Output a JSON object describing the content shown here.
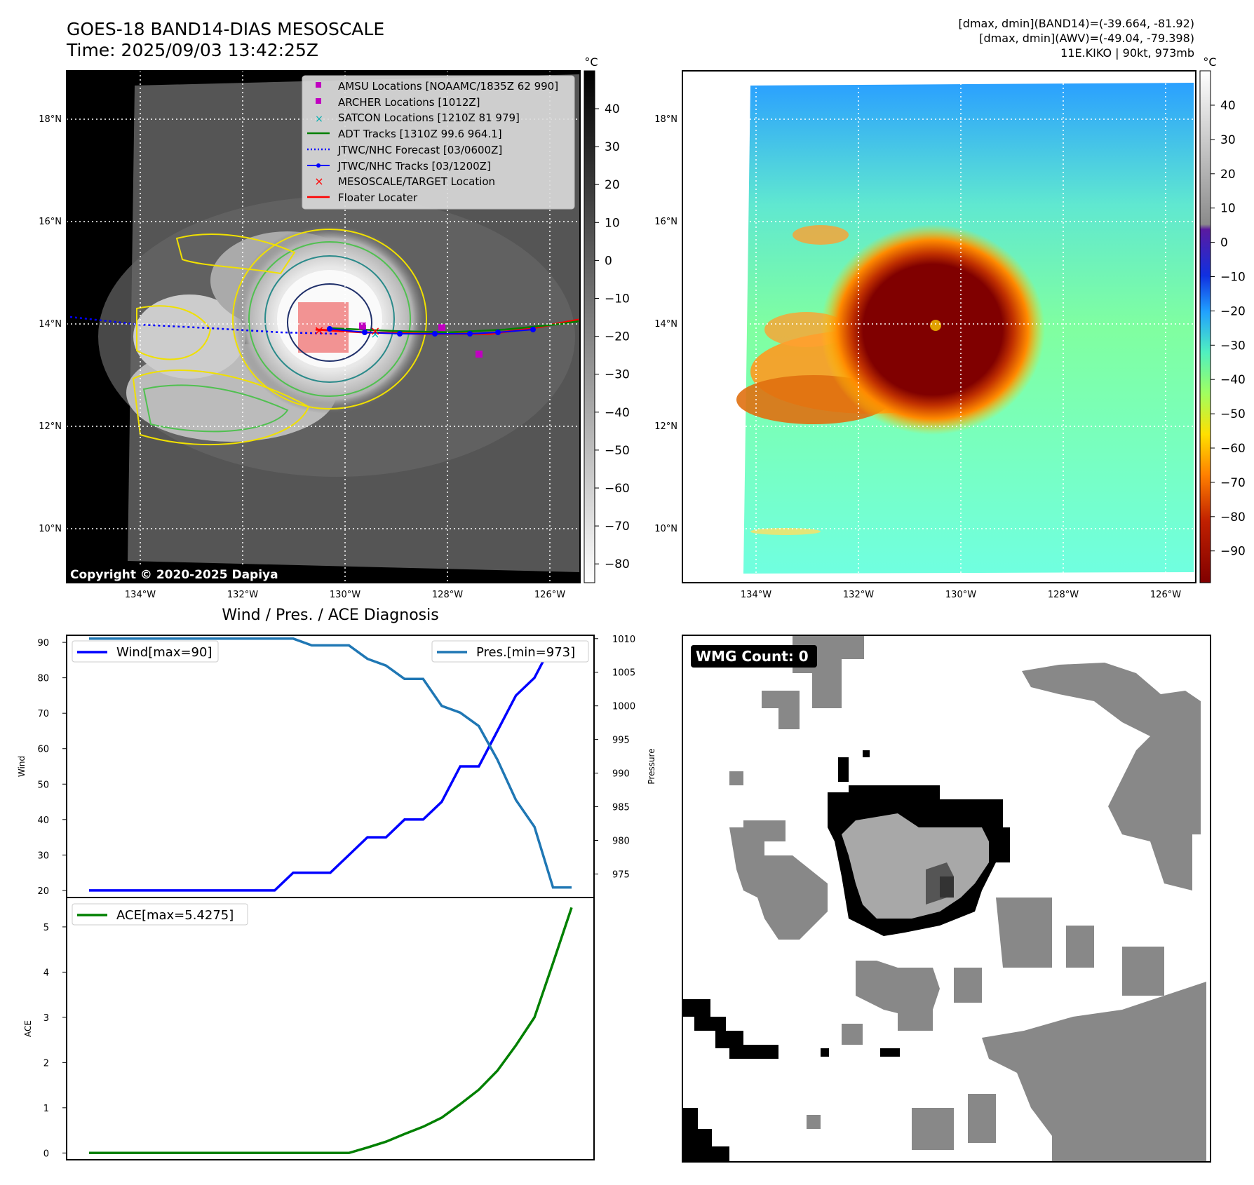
{
  "header": {
    "title": "GOES-18 BAND14-DIAS MESOSCALE",
    "time": "Time: 2025/09/03 13:42:25Z",
    "info_line1": "[dmax, dmin](BAND14)=(-39.664, -81.92)",
    "info_line2": "[dmax, dmin](AWV)=(-49.04, -79.398)",
    "info_line3": "11E.KIKO | 90kt, 973mb"
  },
  "satellite_panel": {
    "copyright": "Copyright © 2020-2025 Dapiya",
    "colorbar_unit": "°C",
    "colorbar_ticks": [
      "40",
      "30",
      "20",
      "10",
      "0",
      "−10",
      "−20",
      "−30",
      "−40",
      "−50",
      "−60",
      "−70",
      "−80"
    ],
    "lon_labels": [
      "134°W",
      "132°W",
      "130°W",
      "128°W",
      "126°W"
    ],
    "lat_labels": [
      "18°N",
      "16°N",
      "14°N",
      "12°N",
      "10°N"
    ],
    "legend": [
      {
        "label": "AMSU Locations [NOAAMC/1835Z 62 990]",
        "marker": "square",
        "color": "#c000c0"
      },
      {
        "label": "ARCHER Locations [1012Z]",
        "marker": "square",
        "color": "#c000c0"
      },
      {
        "label": "SATCON Locations [1210Z 81 979]",
        "marker": "x",
        "color": "#00b0b0"
      },
      {
        "label": "ADT Tracks [1310Z 99.6 964.1]",
        "marker": "line",
        "color": "#008000"
      },
      {
        "label": "JTWC/NHC Forecast [03/0600Z]",
        "marker": "dotted",
        "color": "#0000ff"
      },
      {
        "label": "JTWC/NHC Tracks [03/1200Z]",
        "marker": "line-dot",
        "color": "#0000ff"
      },
      {
        "label": "MESOSCALE/TARGET Location",
        "marker": "x",
        "color": "#ff0000"
      },
      {
        "label": "Floater Locater",
        "marker": "line",
        "color": "#ff0000"
      }
    ]
  },
  "awv_panel": {
    "colorbar_unit": "°C",
    "colorbar_ticks": [
      "40",
      "30",
      "20",
      "10",
      "0",
      "−10",
      "−20",
      "−30",
      "−40",
      "−50",
      "−60",
      "−70",
      "−80",
      "−90"
    ],
    "lon_labels": [
      "134°W",
      "132°W",
      "130°W",
      "128°W",
      "126°W"
    ],
    "lat_labels": [
      "18°N",
      "16°N",
      "14°N",
      "12°N",
      "10°N"
    ]
  },
  "wmg_panel": {
    "badge": "WMG Count: 0"
  },
  "chart_data": [
    {
      "type": "line",
      "title": "Wind / Pres. / ACE Diagnosis",
      "ylabel": "Wind",
      "ylabel2": "Pressure",
      "ylim": [
        18,
        92
      ],
      "ylim2": [
        971.5,
        1010.5
      ],
      "yticks": [
        20,
        30,
        40,
        50,
        60,
        70,
        80,
        90
      ],
      "yticks2": [
        975,
        980,
        985,
        990,
        995,
        1000,
        1005,
        1010
      ],
      "x": [
        0,
        1,
        2,
        3,
        4,
        5,
        6,
        7,
        8,
        9,
        10,
        11,
        12,
        13,
        14,
        15,
        16,
        17,
        18,
        19,
        20,
        21,
        22,
        23,
        24,
        25,
        26
      ],
      "series": [
        {
          "name": "Wind[max=90]",
          "axis": "left",
          "color": "#0000ff",
          "values": [
            20,
            20,
            20,
            20,
            20,
            20,
            20,
            20,
            20,
            20,
            20,
            25,
            25,
            25,
            30,
            35,
            35,
            40,
            40,
            45,
            55,
            55,
            65,
            75,
            80,
            90,
            90
          ]
        },
        {
          "name": "Pres.[min=973]",
          "axis": "right",
          "color": "#1f77b4",
          "values": [
            1010,
            1010,
            1010,
            1010,
            1010,
            1010,
            1010,
            1010,
            1010,
            1010,
            1010,
            1010,
            1009,
            1009,
            1009,
            1007,
            1006,
            1004,
            1004,
            1000,
            999,
            997,
            992,
            986,
            982,
            973,
            973
          ]
        }
      ]
    },
    {
      "type": "line",
      "ylabel": "ACE",
      "ylim": [
        -0.15,
        5.65
      ],
      "yticks": [
        0,
        1,
        2,
        3,
        4,
        5
      ],
      "x": [
        0,
        1,
        2,
        3,
        4,
        5,
        6,
        7,
        8,
        9,
        10,
        11,
        12,
        13,
        14,
        15,
        16,
        17,
        18,
        19,
        20,
        21,
        22,
        23,
        24,
        25,
        26
      ],
      "series": [
        {
          "name": "ACE[max=5.4275]",
          "color": "#008000",
          "values": [
            0,
            0,
            0,
            0,
            0,
            0,
            0,
            0,
            0,
            0,
            0,
            0,
            0,
            0,
            0,
            0.12,
            0.25,
            0.42,
            0.58,
            0.78,
            1.08,
            1.4,
            1.82,
            2.38,
            3.0,
            4.2,
            5.4275
          ]
        }
      ]
    }
  ]
}
